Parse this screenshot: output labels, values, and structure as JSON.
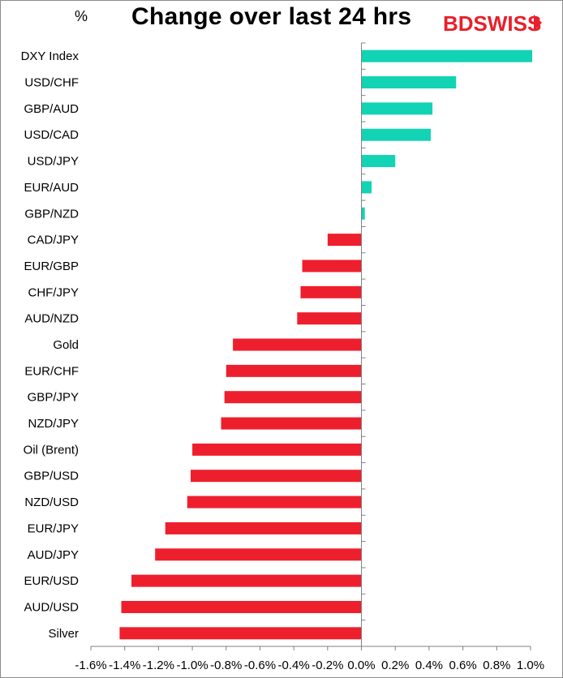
{
  "header": {
    "unit": "%",
    "title": "Change over last 24 hrs",
    "logo": "BDSWISS"
  },
  "colors": {
    "positive": "#12d3b4",
    "negative": "#ee1f2c",
    "axis": "#808080",
    "logo": "#e8202a"
  },
  "chart_data": {
    "type": "bar",
    "orientation": "horizontal",
    "title": "Change over last 24 hrs",
    "ylabel": "%",
    "categories": [
      "DXY Index",
      "USD/CHF",
      "GBP/AUD",
      "USD/CAD",
      "USD/JPY",
      "EUR/AUD",
      "GBP/NZD",
      "CAD/JPY",
      "EUR/GBP",
      "CHF/JPY",
      "AUD/NZD",
      "Gold",
      "EUR/CHF",
      "GBP/JPY",
      "NZD/JPY",
      "Oil (Brent)",
      "GBP/USD",
      "NZD/USD",
      "EUR/JPY",
      "AUD/JPY",
      "EUR/USD",
      "AUD/USD",
      "Silver"
    ],
    "values": [
      1.01,
      0.56,
      0.42,
      0.41,
      0.2,
      0.06,
      0.02,
      -0.2,
      -0.35,
      -0.36,
      -0.38,
      -0.76,
      -0.8,
      -0.81,
      -0.83,
      -1.0,
      -1.01,
      -1.03,
      -1.16,
      -1.22,
      -1.36,
      -1.42,
      -1.43
    ],
    "xlim": [
      -1.6,
      1.0
    ],
    "xticks": [
      -1.6,
      -1.4,
      -1.2,
      -1.0,
      -0.8,
      -0.6,
      -0.4,
      -0.2,
      0.0,
      0.2,
      0.4,
      0.6,
      0.8,
      1.0
    ],
    "xtick_labels": [
      "-1.6%",
      "-1.4%",
      "-1.2%",
      "-1.0%",
      "-0.8%",
      "-0.6%",
      "-0.4%",
      "-0.2%",
      "0.0%",
      "0.2%",
      "0.4%",
      "0.6%",
      "0.8%",
      "1.0%"
    ],
    "grid": false,
    "legend": "none"
  }
}
